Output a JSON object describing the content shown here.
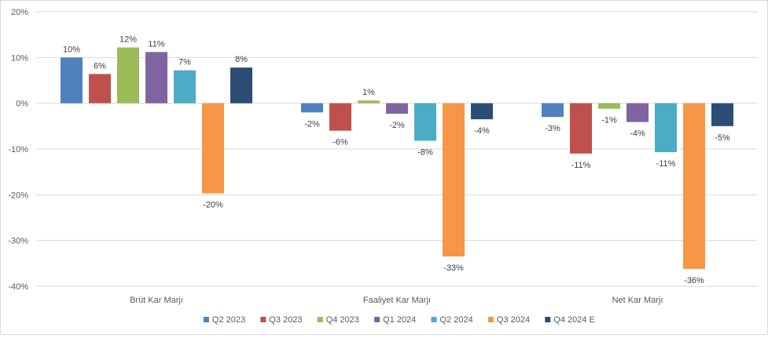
{
  "chart_data": {
    "type": "bar",
    "categories": [
      "Brüt Kar Marjı",
      "Faaliyet Kar Marjı",
      "Net Kar Marjı"
    ],
    "series": [
      {
        "name": "Q2 2023",
        "color": "#4F81BD",
        "values": [
          10,
          -2,
          -3
        ],
        "labels": [
          "10%",
          "-2%",
          "-3%"
        ]
      },
      {
        "name": "Q3 2023",
        "color": "#C0504D",
        "values": [
          6.4,
          -6,
          -11
        ],
        "labels": [
          "6%",
          "-6%",
          "-11%"
        ]
      },
      {
        "name": "Q4 2023",
        "color": "#9BBB59",
        "values": [
          12.2,
          0.6,
          -1.2
        ],
        "labels": [
          "12%",
          "1%",
          "-1%"
        ]
      },
      {
        "name": "Q1 2024",
        "color": "#8064A2",
        "values": [
          11.2,
          -2.3,
          -4.1
        ],
        "labels": [
          "11%",
          "-2%",
          "-4%"
        ]
      },
      {
        "name": "Q2 2024",
        "color": "#4BACC6",
        "values": [
          7.2,
          -8.2,
          -10.7
        ],
        "labels": [
          "7%",
          "-8%",
          "-11%"
        ]
      },
      {
        "name": "Q3 2024",
        "color": "#F79646",
        "values": [
          -19.7,
          -33.5,
          -36.2
        ],
        "labels": [
          "-20%",
          "-33%",
          "-36%"
        ]
      },
      {
        "name": "Q4 2024 E",
        "color": "#2C4D75",
        "values": [
          7.8,
          -3.5,
          -5
        ],
        "labels": [
          "8%",
          "-4%",
          "-5%"
        ]
      }
    ],
    "ylim": [
      -40,
      20
    ],
    "yticks": [
      20,
      10,
      0,
      -10,
      -20,
      -30,
      -40
    ],
    "ytick_labels": [
      "20%",
      "10%",
      "0%",
      "-10%",
      "-20%",
      "-30%",
      "-40%"
    ],
    "grid": true,
    "legend_position": "bottom",
    "xlabel": "",
    "ylabel": ""
  }
}
